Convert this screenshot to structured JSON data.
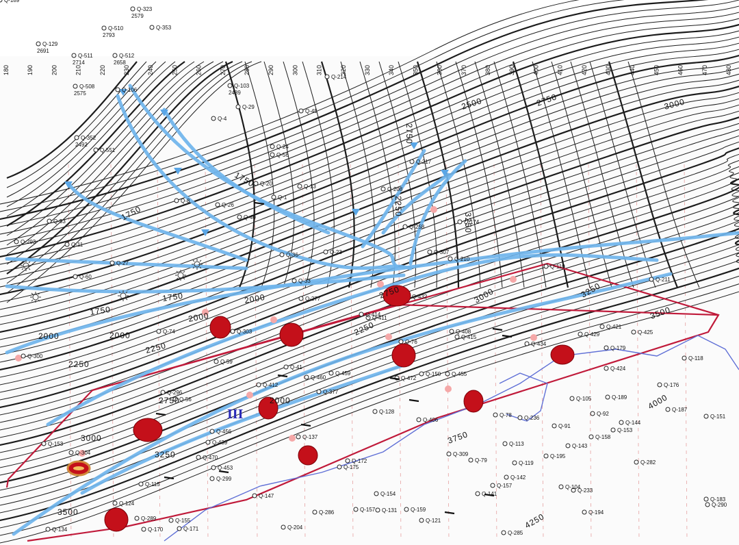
{
  "map_title": "",
  "axis_labels": [
    "180",
    "190",
    "200",
    "210",
    "220",
    "230",
    "240",
    "250",
    "260",
    "270",
    "280",
    "290",
    "300",
    "310",
    "320",
    "330",
    "340",
    "350",
    "360",
    "370",
    "380",
    "390",
    "400",
    "410",
    "420",
    "430",
    "440",
    "450",
    "460",
    "470",
    "480"
  ],
  "contour_labels": [
    {
      "text": "1750"
    },
    {
      "text": "1750"
    },
    {
      "text": "1750"
    },
    {
      "text": "1750"
    },
    {
      "text": "2000"
    },
    {
      "text": "2000"
    },
    {
      "text": "2000"
    },
    {
      "text": "2000"
    },
    {
      "text": "2000"
    },
    {
      "text": "2250"
    },
    {
      "text": "2250"
    },
    {
      "text": "2250"
    },
    {
      "text": "2250"
    },
    {
      "text": "2500"
    },
    {
      "text": "2750"
    },
    {
      "text": "2750"
    },
    {
      "text": "2750"
    },
    {
      "text": "3000"
    },
    {
      "text": "3000"
    },
    {
      "text": "3000"
    },
    {
      "text": "3250"
    },
    {
      "text": "3250"
    },
    {
      "text": "3500"
    },
    {
      "text": "3500"
    },
    {
      "text": "3750"
    },
    {
      "text": "4000"
    },
    {
      "text": "4250"
    },
    {
      "text": "2750"
    },
    {
      "text": "3250"
    }
  ],
  "zone_label": "III",
  "wells": [
    {
      "name": "Q-323",
      "depth": "2579"
    },
    {
      "name": "Q-510",
      "depth": "2793"
    },
    {
      "name": "Q-353",
      "depth": ""
    },
    {
      "name": "Q-129",
      "depth": "2691"
    },
    {
      "name": "Q-511",
      "depth": "2714"
    },
    {
      "name": "Q-512",
      "depth": "2658"
    },
    {
      "name": "Q-508",
      "depth": "2575"
    },
    {
      "name": "Q-106",
      "depth": ""
    },
    {
      "name": "Q-103",
      "depth": "2489"
    },
    {
      "name": "Q-214",
      "depth": ""
    },
    {
      "name": "Q-352",
      "depth": "2492"
    },
    {
      "name": "Q-551",
      "depth": ""
    },
    {
      "name": "Q-29",
      "depth": ""
    },
    {
      "name": "Q-4",
      "depth": ""
    },
    {
      "name": "Q-45",
      "depth": ""
    },
    {
      "name": "Q-24",
      "depth": ""
    },
    {
      "name": "Q-56",
      "depth": ""
    },
    {
      "name": "Q-217",
      "depth": ""
    },
    {
      "name": "Q-20",
      "depth": ""
    },
    {
      "name": "Q-13",
      "depth": ""
    },
    {
      "name": "Q-1",
      "depth": ""
    },
    {
      "name": "Q-208",
      "depth": ""
    },
    {
      "name": "Q-8",
      "depth": ""
    },
    {
      "name": "Q-26",
      "depth": ""
    },
    {
      "name": "Q-40",
      "depth": ""
    },
    {
      "name": "Q-53",
      "depth": ""
    },
    {
      "name": "Q-174",
      "depth": ""
    },
    {
      "name": "Q-258",
      "depth": ""
    },
    {
      "name": "Q-293",
      "depth": ""
    },
    {
      "name": "Q-11",
      "depth": ""
    },
    {
      "name": "Q-307",
      "depth": ""
    },
    {
      "name": "Q-210",
      "depth": ""
    },
    {
      "name": "Q-27",
      "depth": ""
    },
    {
      "name": "Q-36",
      "depth": ""
    },
    {
      "name": "Q-23",
      "depth": ""
    },
    {
      "name": "Q-110",
      "depth": ""
    },
    {
      "name": "Q-60",
      "depth": ""
    },
    {
      "name": "Q-33",
      "depth": ""
    },
    {
      "name": "Q-211",
      "depth": ""
    },
    {
      "name": "Q-432",
      "depth": ""
    },
    {
      "name": "Q-277",
      "depth": ""
    },
    {
      "name": "Q-414",
      "depth": ""
    },
    {
      "name": "Q-411",
      "depth": ""
    },
    {
      "name": "Q-408",
      "depth": ""
    },
    {
      "name": "Q-74",
      "depth": ""
    },
    {
      "name": "Q-303",
      "depth": ""
    },
    {
      "name": "Q-76",
      "depth": ""
    },
    {
      "name": "Q-415",
      "depth": ""
    },
    {
      "name": "Q-421",
      "depth": ""
    },
    {
      "name": "Q-425",
      "depth": ""
    },
    {
      "name": "Q-434",
      "depth": ""
    },
    {
      "name": "Q-429",
      "depth": ""
    },
    {
      "name": "Q-179",
      "depth": ""
    },
    {
      "name": "Q-300",
      "depth": ""
    },
    {
      "name": "Q-59",
      "depth": ""
    },
    {
      "name": "Q-41",
      "depth": ""
    },
    {
      "name": "Q-460",
      "depth": ""
    },
    {
      "name": "Q-459",
      "depth": ""
    },
    {
      "name": "Q-472",
      "depth": ""
    },
    {
      "name": "Q-150",
      "depth": ""
    },
    {
      "name": "Q-455",
      "depth": ""
    },
    {
      "name": "Q-118",
      "depth": ""
    },
    {
      "name": "Q-424",
      "depth": ""
    },
    {
      "name": "Q-176",
      "depth": ""
    },
    {
      "name": "Q-296",
      "depth": ""
    },
    {
      "name": "Q-412",
      "depth": ""
    },
    {
      "name": "Q-377",
      "depth": ""
    },
    {
      "name": "Q-105",
      "depth": ""
    },
    {
      "name": "Q-189",
      "depth": ""
    },
    {
      "name": "Q-187",
      "depth": ""
    },
    {
      "name": "Q-151",
      "depth": ""
    },
    {
      "name": "Q-137",
      "depth": ""
    },
    {
      "name": "Q-56",
      "depth": ""
    },
    {
      "name": "Q-406",
      "depth": ""
    },
    {
      "name": "Q-128",
      "depth": ""
    },
    {
      "name": "Q-78",
      "depth": ""
    },
    {
      "name": "Q-236",
      "depth": ""
    },
    {
      "name": "Q-92",
      "depth": ""
    },
    {
      "name": "Q-144",
      "depth": ""
    },
    {
      "name": "Q-153",
      "depth": ""
    },
    {
      "name": "Q-153",
      "depth": ""
    },
    {
      "name": "Q-304",
      "depth": ""
    },
    {
      "name": "Q-456",
      "depth": ""
    },
    {
      "name": "Q-439",
      "depth": ""
    },
    {
      "name": "Q-113",
      "depth": ""
    },
    {
      "name": "Q-91",
      "depth": ""
    },
    {
      "name": "Q-158",
      "depth": ""
    },
    {
      "name": "Q-143",
      "depth": ""
    },
    {
      "name": "Q-470",
      "depth": ""
    },
    {
      "name": "Q-453",
      "depth": ""
    },
    {
      "name": "Q-175",
      "depth": ""
    },
    {
      "name": "Q-172",
      "depth": ""
    },
    {
      "name": "Q-309",
      "depth": ""
    },
    {
      "name": "Q-79",
      "depth": ""
    },
    {
      "name": "Q-119",
      "depth": ""
    },
    {
      "name": "Q-195",
      "depth": ""
    },
    {
      "name": "Q-282",
      "depth": ""
    },
    {
      "name": "Q-299",
      "depth": ""
    },
    {
      "name": "Q-115",
      "depth": ""
    },
    {
      "name": "Q-147",
      "depth": ""
    },
    {
      "name": "Q-142",
      "depth": ""
    },
    {
      "name": "Q-157",
      "depth": ""
    },
    {
      "name": "Q-141",
      "depth": ""
    },
    {
      "name": "Q-104",
      "depth": ""
    },
    {
      "name": "Q-233",
      "depth": ""
    },
    {
      "name": "Q-154",
      "depth": ""
    },
    {
      "name": "Q-124",
      "depth": ""
    },
    {
      "name": "Q-289",
      "depth": ""
    },
    {
      "name": "Q-155",
      "depth": ""
    },
    {
      "name": "Q-171",
      "depth": ""
    },
    {
      "name": "Q-170",
      "depth": ""
    },
    {
      "name": "Q-134",
      "depth": ""
    },
    {
      "name": "Q-204",
      "depth": ""
    },
    {
      "name": "Q-286",
      "depth": ""
    },
    {
      "name": "Q-157",
      "depth": ""
    },
    {
      "name": "Q-131",
      "depth": ""
    },
    {
      "name": "Q-159",
      "depth": ""
    },
    {
      "name": "Q-121",
      "depth": ""
    },
    {
      "name": "Q-194",
      "depth": ""
    },
    {
      "name": "Q-183",
      "depth": ""
    },
    {
      "name": "Q-290",
      "depth": ""
    },
    {
      "name": "Q-285",
      "depth": ""
    },
    {
      "name": "Q-189",
      "depth": ""
    }
  ]
}
